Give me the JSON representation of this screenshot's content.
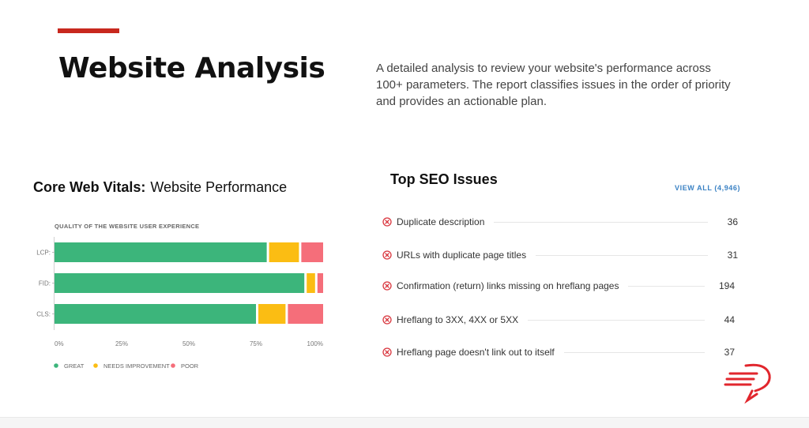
{
  "header": {
    "title": "Website Analysis",
    "intro": "A detailed analysis to review your website's performance across 100+ parameters. The report classifies issues in the order of priority and provides an actionable plan."
  },
  "core_web_vitals": {
    "heading_bold": "Core Web Vitals:",
    "heading_rest": "Website Performance",
    "colors": {
      "great": "#3cb57b",
      "needs_improvement": "#fbbd13",
      "poor": "#f56e7a"
    }
  },
  "chart_data": {
    "type": "bar",
    "orientation": "horizontal",
    "stacked": true,
    "title": "QUALITY OF THE WEBSITE USER EXPERIENCE",
    "categories": [
      "LCP:",
      "FID:",
      "CLS:"
    ],
    "series": [
      {
        "name": "GREAT",
        "values": [
          79,
          93,
          75
        ]
      },
      {
        "name": "NEEDS IMPROVEMENT",
        "values": [
          12,
          4,
          11
        ]
      },
      {
        "name": "POOR",
        "values": [
          9,
          3,
          14
        ]
      }
    ],
    "x_ticks": [
      "0%",
      "25%",
      "50%",
      "75%",
      "100%"
    ],
    "xlim": [
      0,
      100
    ],
    "legend_position": "bottom-left"
  },
  "seo": {
    "heading": "Top SEO Issues",
    "view_all": "VIEW ALL (4,946)",
    "icon": "circle-x-icon",
    "issue_color": "#d9363e",
    "issues": [
      {
        "label": "Duplicate description",
        "count": "36"
      },
      {
        "label": "URLs with duplicate page titles",
        "count": "31"
      },
      {
        "label": "Confirmation (return) links missing on hreflang pages",
        "count": "194"
      },
      {
        "label": "Hreflang to 3XX, 4XX or 5XX",
        "count": "44"
      },
      {
        "label": "Hreflang page doesn't link out to itself",
        "count": "37"
      }
    ]
  },
  "brand": {
    "logo_icon": "brand-logo-icon",
    "logo_color": "#e1262d"
  }
}
